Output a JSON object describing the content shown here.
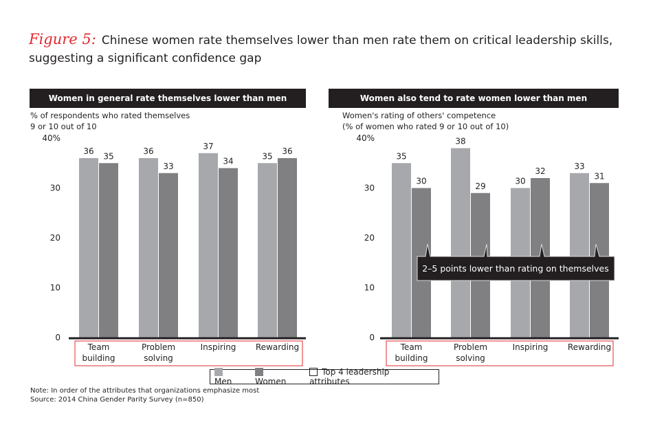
{
  "title": {
    "figure_label": "Figure 5:",
    "text": "Chinese women rate themselves lower than men rate them on critical leadership skills, suggesting a significant confidence gap"
  },
  "colors": {
    "men": "#a7a8ac",
    "women": "#808083",
    "header": "#231f20",
    "highlight_box": "#e0282e"
  },
  "chart_data": [
    {
      "type": "bar",
      "title": "Women in general rate themselves lower than men",
      "ylabel": "% of respondents who rated themselves 9 or 10 out of 10",
      "categories": [
        "Team building",
        "Problem solving",
        "Inspiring",
        "Rewarding"
      ],
      "yticks": [
        "0",
        "10",
        "20",
        "30",
        "40%"
      ],
      "ylim": [
        0,
        40
      ],
      "series": [
        {
          "name": "Men",
          "values": [
            36,
            36,
            37,
            35
          ]
        },
        {
          "name": "Women",
          "values": [
            35,
            33,
            34,
            36
          ]
        }
      ]
    },
    {
      "type": "bar",
      "title": "Women also tend to rate women lower than men",
      "ylabel": "Women's rating of others' competence (% of women who rated 9 or 10 out of 10)",
      "categories": [
        "Team building",
        "Problem solving",
        "Inspiring",
        "Rewarding"
      ],
      "yticks": [
        "0",
        "10",
        "20",
        "30",
        "40%"
      ],
      "ylim": [
        0,
        40
      ],
      "series": [
        {
          "name": "Men",
          "values": [
            35,
            38,
            30,
            33
          ]
        },
        {
          "name": "Women",
          "values": [
            30,
            29,
            32,
            31
          ]
        }
      ],
      "annotation": "2–5 points lower than rating on themselves"
    }
  ],
  "subtitles": {
    "left": [
      "% of respondents who rated themselves",
      "9 or 10 out of 10"
    ],
    "right": [
      "Women's rating of others' competence",
      "(% of women who rated 9 or 10 out of 10)"
    ]
  },
  "category_lines": [
    [
      "Team",
      "building"
    ],
    [
      "Problem",
      "solving"
    ],
    [
      "Inspiring"
    ],
    [
      "Rewarding"
    ]
  ],
  "legend": {
    "men": "Men",
    "women": "Women",
    "top4": "Top 4 leadership attributes"
  },
  "notes": {
    "note": "Note: In order of the attributes that organizations emphasize most",
    "source": "Source: 2014 China Gender Parity Survey (n=850)"
  }
}
